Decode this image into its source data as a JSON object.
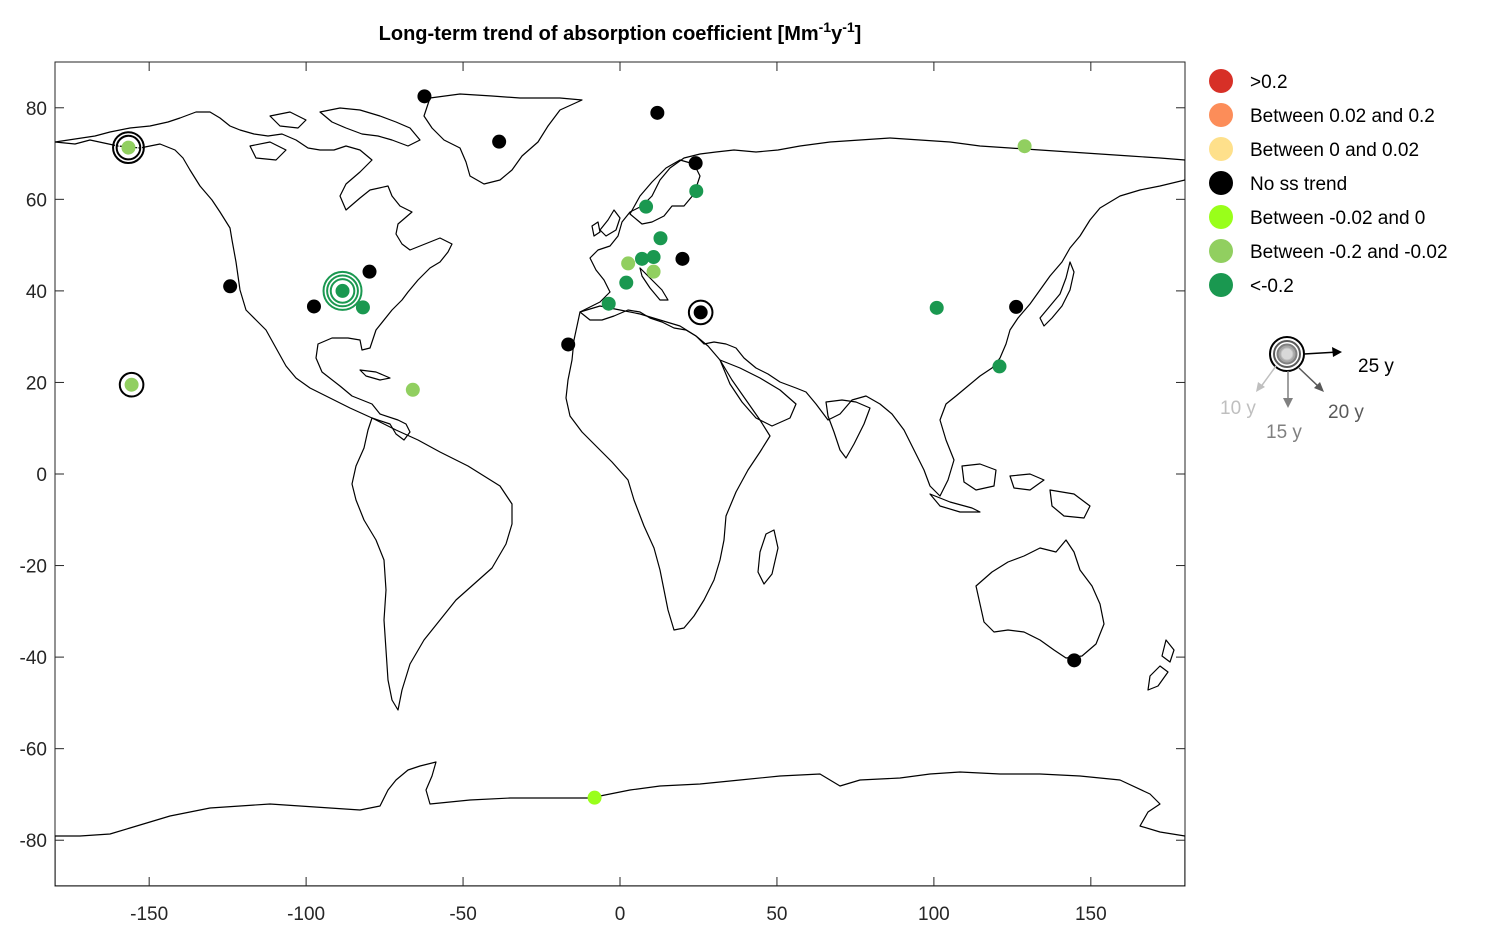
{
  "title": {
    "main": "Long-term trend of absorption coefficient [Mm",
    "sup1": "-1",
    "mid": "y",
    "sup2": "-1",
    "end": "]"
  },
  "chart_data": {
    "type": "scatter",
    "xlim": [
      -180,
      180
    ],
    "ylim": [
      -90,
      90
    ],
    "xticks": [
      "-150",
      "-100",
      "-50",
      "0",
      "50",
      "100",
      "150"
    ],
    "xtick_values": [
      -150,
      -100,
      -50,
      0,
      50,
      100,
      150
    ],
    "yticks": [
      "80",
      "60",
      "40",
      "20",
      "0",
      "-20",
      "-40",
      "-60",
      "-80"
    ],
    "ytick_values": [
      80,
      60,
      40,
      20,
      0,
      -20,
      -40,
      -60,
      -80
    ],
    "grid": false,
    "legend_placement": "outside-right",
    "categories": [
      {
        "key": "gt02",
        "label": ">0.2",
        "color": "#d73027"
      },
      {
        "key": "p002_02",
        "label": "Between 0.02 and 0.2",
        "color": "#fc8d59"
      },
      {
        "key": "p0_002",
        "label": "Between 0 and 0.02",
        "color": "#fee08b"
      },
      {
        "key": "nosig",
        "label": "No ss trend",
        "color": "#000000"
      },
      {
        "key": "m002_0",
        "label": "Between -0.02 and 0",
        "color": "#99ff1a"
      },
      {
        "key": "m02_002",
        "label": "Between -0.2 and -0.02",
        "color": "#91cf60"
      },
      {
        "key": "ltm02",
        "label": "<-0.2",
        "color": "#1a9850"
      }
    ],
    "points": [
      {
        "lon": -156.6,
        "lat": 71.3,
        "cat": "m02_002",
        "rings": 2
      },
      {
        "lon": -155.6,
        "lat": 19.5,
        "cat": "m02_002",
        "rings": 1
      },
      {
        "lon": -88.4,
        "lat": 40.0,
        "cat": "ltm02",
        "rings": 3
      },
      {
        "lon": -124.2,
        "lat": 41.0,
        "cat": "nosig",
        "rings": 0
      },
      {
        "lon": -97.5,
        "lat": 36.6,
        "cat": "nosig",
        "rings": 0
      },
      {
        "lon": -79.8,
        "lat": 44.2,
        "cat": "nosig",
        "rings": 0
      },
      {
        "lon": -81.9,
        "lat": 36.4,
        "cat": "ltm02",
        "rings": 0
      },
      {
        "lon": -62.3,
        "lat": 82.5,
        "cat": "nosig",
        "rings": 0
      },
      {
        "lon": -38.5,
        "lat": 72.6,
        "cat": "nosig",
        "rings": 0
      },
      {
        "lon": 11.9,
        "lat": 78.9,
        "cat": "nosig",
        "rings": 0
      },
      {
        "lon": -66.0,
        "lat": 18.4,
        "cat": "m02_002",
        "rings": 0
      },
      {
        "lon": -16.5,
        "lat": 28.3,
        "cat": "nosig",
        "rings": 0
      },
      {
        "lon": -8.1,
        "lat": -70.7,
        "cat": "m002_0",
        "rings": 0
      },
      {
        "lon": 24.1,
        "lat": 67.9,
        "cat": "nosig",
        "rings": 0
      },
      {
        "lon": 24.3,
        "lat": 61.8,
        "cat": "ltm02",
        "rings": 0
      },
      {
        "lon": 8.3,
        "lat": 58.4,
        "cat": "ltm02",
        "rings": 0
      },
      {
        "lon": 12.9,
        "lat": 51.5,
        "cat": "ltm02",
        "rings": 0
      },
      {
        "lon": 2.6,
        "lat": 46.0,
        "cat": "m02_002",
        "rings": 0
      },
      {
        "lon": 7.0,
        "lat": 47.0,
        "cat": "ltm02",
        "rings": 0
      },
      {
        "lon": 10.7,
        "lat": 47.4,
        "cat": "ltm02",
        "rings": 0
      },
      {
        "lon": 10.7,
        "lat": 44.2,
        "cat": "m02_002",
        "rings": 0
      },
      {
        "lon": 2.0,
        "lat": 41.8,
        "cat": "ltm02",
        "rings": 0
      },
      {
        "lon": -3.6,
        "lat": 37.2,
        "cat": "ltm02",
        "rings": 0
      },
      {
        "lon": 19.9,
        "lat": 47.0,
        "cat": "nosig",
        "rings": 0
      },
      {
        "lon": 25.7,
        "lat": 35.3,
        "cat": "nosig",
        "rings": 1
      },
      {
        "lon": 100.9,
        "lat": 36.3,
        "cat": "ltm02",
        "rings": 0
      },
      {
        "lon": 126.2,
        "lat": 36.5,
        "cat": "nosig",
        "rings": 0
      },
      {
        "lon": 120.9,
        "lat": 23.5,
        "cat": "ltm02",
        "rings": 0
      },
      {
        "lon": 128.9,
        "lat": 71.6,
        "cat": "m02_002",
        "rings": 0
      },
      {
        "lon": 144.7,
        "lat": -40.7,
        "cat": "nosig",
        "rings": 0
      }
    ],
    "duration_legend": [
      {
        "label": "25 y",
        "color": "#000000"
      },
      {
        "label": "20 y",
        "color": "#595959"
      },
      {
        "label": "15 y",
        "color": "#808080"
      },
      {
        "label": "10 y",
        "color": "#bfbfbf"
      }
    ]
  }
}
